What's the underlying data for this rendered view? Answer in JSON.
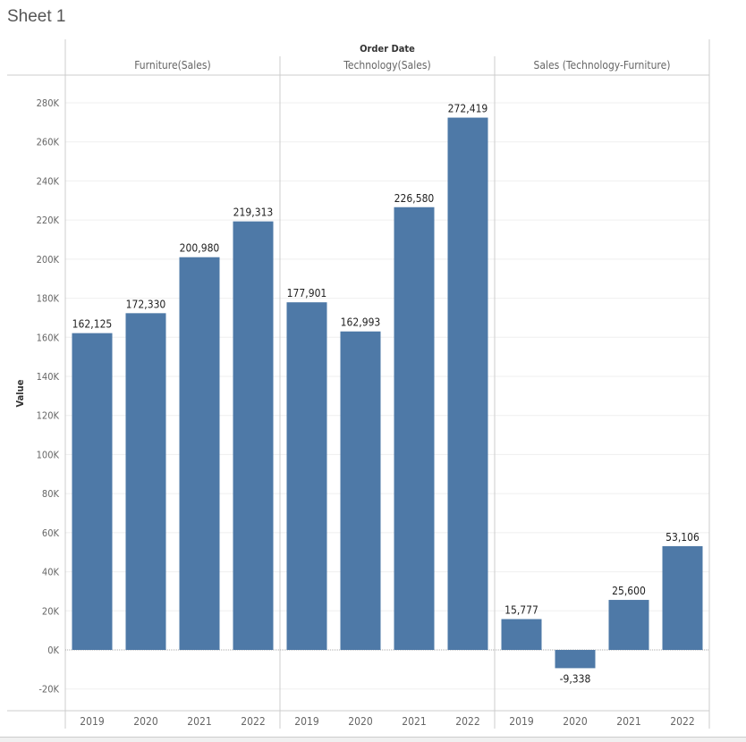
{
  "title": "Sheet 1",
  "chart_data": {
    "type": "bar",
    "column_header": "Order Date",
    "ylabel": "Value",
    "ylim": [
      -31000,
      294000
    ],
    "yticks": [
      -20000,
      0,
      20000,
      40000,
      60000,
      80000,
      100000,
      120000,
      140000,
      160000,
      180000,
      200000,
      220000,
      240000,
      260000,
      280000
    ],
    "ytick_labels": [
      "-20K",
      "0K",
      "20K",
      "40K",
      "60K",
      "80K",
      "100K",
      "120K",
      "140K",
      "160K",
      "180K",
      "200K",
      "220K",
      "240K",
      "260K",
      "280K"
    ],
    "grid": true,
    "bar_color": "#4e79a7",
    "panes": [
      {
        "name": "Furniture(Sales)",
        "categories": [
          "2019",
          "2020",
          "2021",
          "2022"
        ],
        "values": [
          162125,
          172330,
          200980,
          219313
        ],
        "labels": [
          "162,125",
          "172,330",
          "200,980",
          "219,313"
        ]
      },
      {
        "name": "Technology(Sales)",
        "categories": [
          "2019",
          "2020",
          "2021",
          "2022"
        ],
        "values": [
          177901,
          162993,
          226580,
          272419
        ],
        "labels": [
          "177,901",
          "162,993",
          "226,580",
          "272,419"
        ]
      },
      {
        "name": "Sales (Technology-Furniture)",
        "categories": [
          "2019",
          "2020",
          "2021",
          "2022"
        ],
        "values": [
          15777,
          -9338,
          25600,
          53106
        ],
        "labels": [
          "15,777",
          "-9,338",
          "25,600",
          "53,106"
        ]
      }
    ]
  }
}
